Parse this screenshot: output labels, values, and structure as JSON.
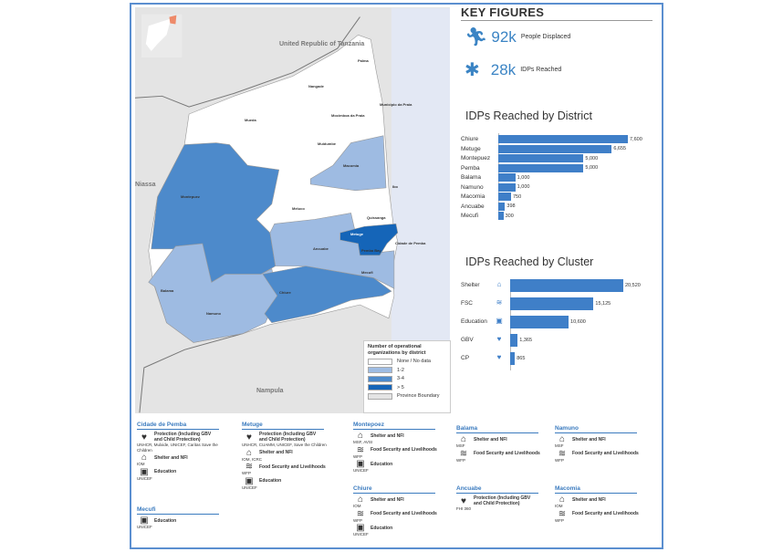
{
  "map": {
    "countries": {
      "tanzania": "United Republic of Tanzania",
      "niassa": "Niassa",
      "nampula": "Nampula"
    },
    "districts": [
      "Palma",
      "Nangade",
      "Mocimboa da Praia",
      "Municipio da Praia",
      "Mueda",
      "Muidumbe",
      "Macomia",
      "Montepuez",
      "Meluco",
      "Quissanga",
      "Ibo",
      "Metuge",
      "Ancuabe",
      "Cidade de Pemba",
      "Pemba Bay",
      "Mecufi",
      "Balama",
      "Namuno",
      "Chiure"
    ],
    "legend": {
      "title": "Number of operational organizations by district",
      "items": [
        {
          "label": "None / No data",
          "color": "#ffffff"
        },
        {
          "label": "1-2",
          "color": "#9ebbe2"
        },
        {
          "label": "3-4",
          "color": "#4d8acb"
        },
        {
          "label": "> 5",
          "color": "#1565b8"
        },
        {
          "label": "Province Boundary",
          "color": "#e4e4e4"
        }
      ]
    }
  },
  "key_figures": {
    "title": "KEY FIGURES",
    "displaced": {
      "value": "92k",
      "label": "People Displaced",
      "icon": "running-person-icon"
    },
    "reached": {
      "value": "28k",
      "label": "IDPs Reached",
      "icon": "person-icon"
    }
  },
  "chart_data": [
    {
      "type": "bar",
      "title": "IDPs Reached by District",
      "categories": [
        "Chiure",
        "Metuge",
        "Montepuez",
        "Pemba",
        "Balama",
        "Namuno",
        "Macomia",
        "Ancuabe",
        "Mecufi"
      ],
      "values": [
        7600,
        6655,
        5000,
        5000,
        1000,
        1000,
        750,
        398,
        300
      ],
      "labels": [
        "7,600",
        "6,655",
        "5,000",
        "5,000",
        "1,000",
        "1,000",
        "750",
        "398",
        "300"
      ],
      "orientation": "horizontal",
      "color": "#3f7fc8"
    },
    {
      "type": "bar",
      "title": "IDPs Reached by Cluster",
      "categories": [
        "Shelter",
        "FSC",
        "Education",
        "GBV",
        "CP"
      ],
      "values": [
        20520,
        15125,
        10600,
        1365,
        865
      ],
      "labels": [
        "20,520",
        "15,125",
        "10,600",
        "1,365",
        "865"
      ],
      "icons": [
        "shelter-icon",
        "food-icon",
        "education-icon",
        "protection-icon",
        "child-protection-icon"
      ],
      "orientation": "horizontal",
      "color": "#3f7fc8"
    }
  ],
  "districts": [
    {
      "name": "Cidade de Pemba",
      "items": [
        {
          "cluster": "Protection (Including GBV and Child Protection)",
          "orgs": "UNHCR, Mulxide, UNICEF, Caritas Save the Children"
        },
        {
          "cluster": "Shelter and NFI",
          "orgs": "IOM"
        },
        {
          "cluster": "Education",
          "orgs": "UNICEF"
        }
      ]
    },
    {
      "name": "Mecufi",
      "items": [
        {
          "cluster": "Education",
          "orgs": "UNICEF"
        }
      ]
    },
    {
      "name": "Metuge",
      "items": [
        {
          "cluster": "Protection (Including GBV and Child Protection)",
          "orgs": "UNHCR, CUAMM, UNICEF, Save the Children"
        },
        {
          "cluster": "Shelter and NFI",
          "orgs": "IOM, ICRC"
        },
        {
          "cluster": "Food Security and Livelihoods",
          "orgs": "WFP"
        },
        {
          "cluster": "Education",
          "orgs": "UNICEF"
        }
      ]
    },
    {
      "name": "Montepoez",
      "items": [
        {
          "cluster": "Shelter and NFI",
          "orgs": "MSF, AVSI"
        },
        {
          "cluster": "Food Security and Livelihoods",
          "orgs": "WFP"
        },
        {
          "cluster": "Education",
          "orgs": "UNICEF"
        }
      ]
    },
    {
      "name": "Chiure",
      "items": [
        {
          "cluster": "Shelter and NFI",
          "orgs": "IOM"
        },
        {
          "cluster": "Food Security and Livelihoods",
          "orgs": "WFP"
        },
        {
          "cluster": "Education",
          "orgs": "UNICEF"
        }
      ]
    },
    {
      "name": "Balama",
      "items": [
        {
          "cluster": "Shelter and NFI",
          "orgs": "MSF"
        },
        {
          "cluster": "Food Security and Livelihoods",
          "orgs": "WFP"
        }
      ]
    },
    {
      "name": "Ancuabe",
      "items": [
        {
          "cluster": "Protection (Including GBV and Child Protection)",
          "orgs": "FHI 360"
        }
      ]
    },
    {
      "name": "Namuno",
      "items": [
        {
          "cluster": "Shelter and NFI",
          "orgs": "MSF"
        },
        {
          "cluster": "Food Security and Livelihoods",
          "orgs": "WFP"
        }
      ]
    },
    {
      "name": "Macomia",
      "items": [
        {
          "cluster": "Shelter and NFI",
          "orgs": "IOM"
        },
        {
          "cluster": "Food Security and Livelihoods",
          "orgs": "WFP"
        }
      ]
    }
  ]
}
